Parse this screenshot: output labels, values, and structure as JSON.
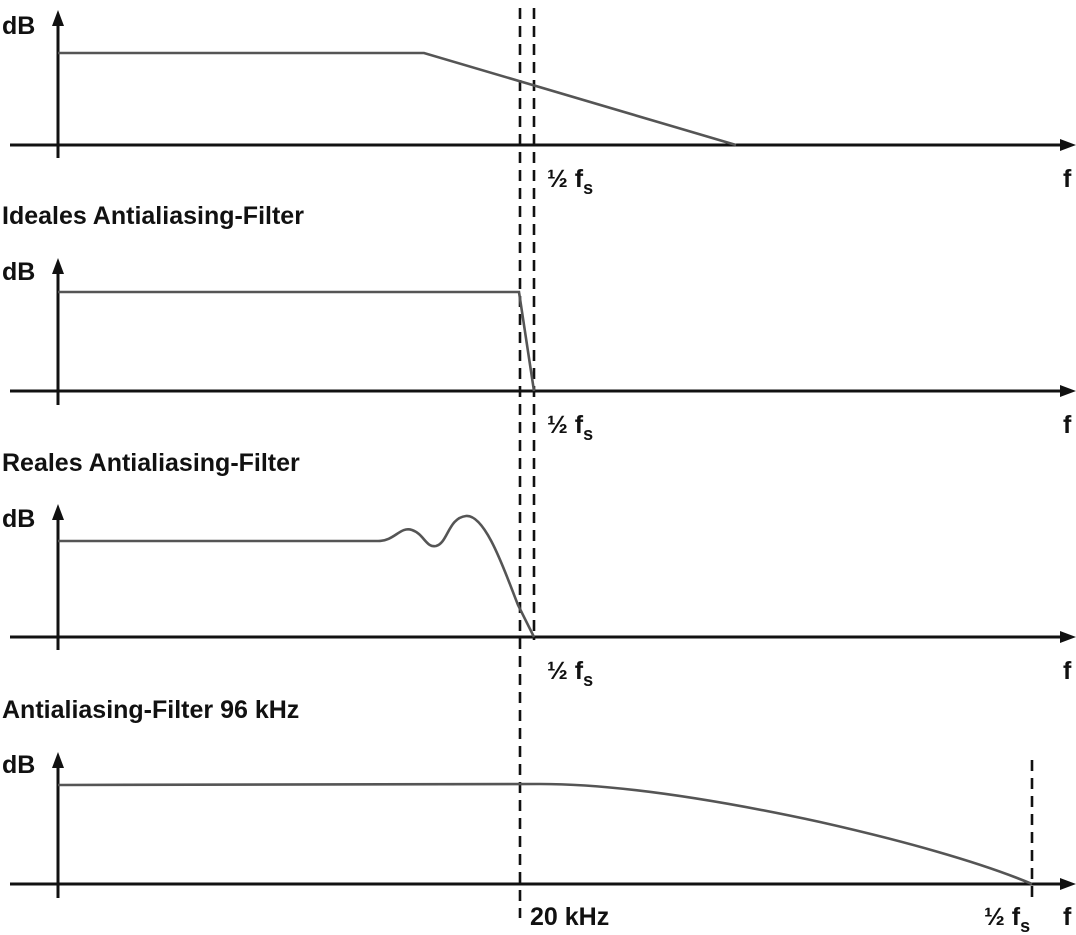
{
  "diagram": {
    "y_label": "dB",
    "x_label": "f",
    "half_fs_label": "½ f",
    "fs_subscript": "s",
    "panels": [
      {
        "title": ""
      },
      {
        "title": "Ideales Antialiasing-Filter"
      },
      {
        "title": "Reales Antialiasing-Filter"
      },
      {
        "title": "Antialiasing-Filter 96 kHz",
        "cutoff_label": "20 kHz"
      }
    ]
  }
}
